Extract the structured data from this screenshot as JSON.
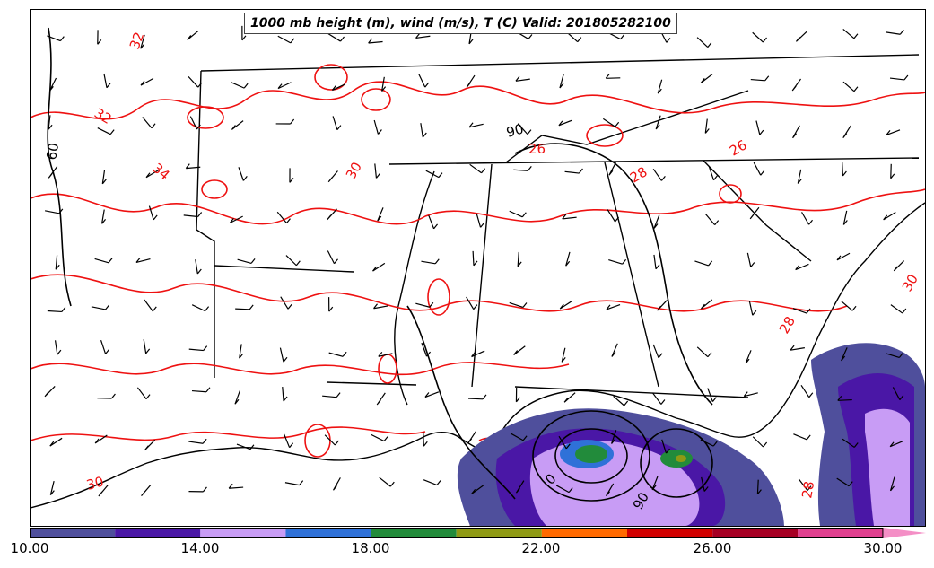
{
  "title": "1000 mb height (m), wind (m/s), T (C) Valid: 201805282100",
  "contour_labels": {
    "temperature": [
      "32",
      "32",
      "34",
      "30",
      "26",
      "28",
      "26",
      "28",
      "30",
      "28",
      "30"
    ],
    "height": [
      "60",
      "90",
      "0",
      "90"
    ]
  },
  "colorbar": {
    "min": 10,
    "max": 31,
    "bins": [
      {
        "from": 10,
        "to": 12,
        "color": "#4f4f9c"
      },
      {
        "from": 12,
        "to": 14,
        "color": "#4a17a6"
      },
      {
        "from": 14,
        "to": 16,
        "color": "#c89cf5"
      },
      {
        "from": 16,
        "to": 18,
        "color": "#2f71d8"
      },
      {
        "from": 18,
        "to": 20,
        "color": "#228b3b"
      },
      {
        "from": 20,
        "to": 22,
        "color": "#8f9a14"
      },
      {
        "from": 22,
        "to": 24,
        "color": "#ff6a00"
      },
      {
        "from": 24,
        "to": 26,
        "color": "#d10000"
      },
      {
        "from": 26,
        "to": 28,
        "color": "#a60024"
      },
      {
        "from": 28,
        "to": 30,
        "color": "#e0408f"
      },
      {
        "from": 30,
        "to": 31,
        "color": "#f48fc6"
      }
    ],
    "tick_labels": [
      "10.00",
      "14.00",
      "18.00",
      "22.00",
      "26.00",
      "30.00"
    ]
  },
  "colors": {
    "temperature_contour": "#ee1111",
    "height_contour": "#000000",
    "state_border": "#000000"
  }
}
